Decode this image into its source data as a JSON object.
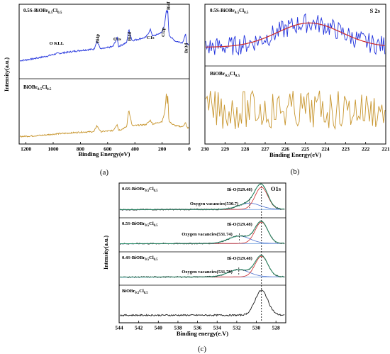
{
  "figure": {
    "colors": {
      "blue": "#2233dd",
      "orange": "#c8962f",
      "red": "#cc2a2a",
      "dark": "#1a1a1a",
      "teal": "#2a8f6a",
      "grey": "#777777"
    }
  },
  "chart_data": [
    {
      "panel": "(a)",
      "type": "line",
      "xlabel": "Binding Energy(eV)",
      "ylabel": "Intensity(a.u.)",
      "xlim": [
        1250,
        0
      ],
      "xticks": [
        1200,
        1000,
        800,
        600,
        400,
        200,
        0
      ],
      "series": [
        {
          "name": "0.5S-BiOBr0.5Cl0.5",
          "color": "blue",
          "x": [
            1250,
            1150,
            1050,
            975,
            900,
            800,
            700,
            680,
            650,
            560,
            530,
            520,
            500,
            460,
            445,
            420,
            320,
            285,
            270,
            240,
            200,
            180,
            168,
            162,
            158,
            150,
            120,
            100,
            50,
            28,
            20,
            5
          ],
          "y": [
            0.22,
            0.25,
            0.29,
            0.33,
            0.35,
            0.38,
            0.4,
            0.52,
            0.4,
            0.44,
            0.58,
            0.44,
            0.46,
            0.5,
            0.7,
            0.53,
            0.58,
            0.7,
            0.6,
            0.62,
            0.66,
            0.8,
            1.0,
            0.95,
            1.0,
            0.62,
            0.55,
            0.52,
            0.5,
            0.63,
            0.5,
            0.45
          ]
        },
        {
          "name": "BiOBr0.5Cl0.5",
          "color": "orange",
          "x": [
            1250,
            1150,
            1050,
            975,
            900,
            800,
            700,
            680,
            650,
            560,
            530,
            520,
            500,
            460,
            445,
            420,
            320,
            285,
            270,
            240,
            200,
            180,
            168,
            162,
            158,
            150,
            120,
            100,
            50,
            28,
            20,
            5
          ],
          "y": [
            0.1,
            0.11,
            0.13,
            0.15,
            0.16,
            0.18,
            0.19,
            0.3,
            0.19,
            0.21,
            0.33,
            0.22,
            0.23,
            0.28,
            0.6,
            0.3,
            0.32,
            0.4,
            0.33,
            0.35,
            0.38,
            0.55,
            0.92,
            0.7,
            0.88,
            0.38,
            0.32,
            0.3,
            0.28,
            0.36,
            0.28,
            0.25
          ]
        }
      ],
      "annotations": [
        "O KLL",
        "Bi4p",
        "O1s",
        "Bi4d",
        "C1s",
        "Cl2p",
        "Bi4f",
        "Br3d"
      ]
    },
    {
      "panel": "(b)",
      "type": "line",
      "xlabel": "Binding Energy(eV)",
      "xlim": [
        230,
        221
      ],
      "xticks": [
        230,
        229,
        228,
        227,
        226,
        225,
        224,
        223,
        222,
        221
      ],
      "title": "S 2s",
      "series": [
        {
          "name": "0.5S-BiOBr0.5Cl0.5",
          "color": "blue",
          "kind": "raw"
        },
        {
          "name": "fit",
          "color": "red",
          "kind": "gaussian",
          "center": 224.8,
          "sigma": 1.6
        },
        {
          "name": "BiOBr0.5Cl0.5",
          "color": "orange",
          "kind": "noise"
        }
      ]
    },
    {
      "panel": "(c)",
      "type": "line",
      "xlabel": "Binding energy(e.V)",
      "ylabel": "Intensity(a.u.)",
      "xlim": [
        544,
        527
      ],
      "xticks": [
        544,
        542,
        540,
        538,
        536,
        534,
        532,
        530,
        528
      ],
      "title": "O1s",
      "series": [
        {
          "name": "0.6S-BiOBr0.5Cl0.5",
          "peaks": [
            {
              "label": "Bi-O(529.48)",
              "center": 529.48
            },
            {
              "label": "Oxygen vacancies(530.7)",
              "center": 530.7
            }
          ]
        },
        {
          "name": "0.5S-BiOBr0.5Cl0.5",
          "peaks": [
            {
              "label": "Bi-O(529.48)",
              "center": 529.48
            },
            {
              "label": "Oxygen vacancies(531.74)",
              "center": 531.74
            }
          ]
        },
        {
          "name": "0.4S-BiOBr0.5Cl0.5",
          "peaks": [
            {
              "label": "Bi-O(529.48)",
              "center": 529.48
            },
            {
              "label": "Oxygen vacancies(531.79)",
              "center": 531.79
            }
          ]
        },
        {
          "name": "BiOBr0.5Cl0.5",
          "peaks": [
            {
              "center": 529.48
            }
          ]
        }
      ]
    }
  ],
  "captions": [
    "(a)",
    "(b)",
    "(c)"
  ]
}
